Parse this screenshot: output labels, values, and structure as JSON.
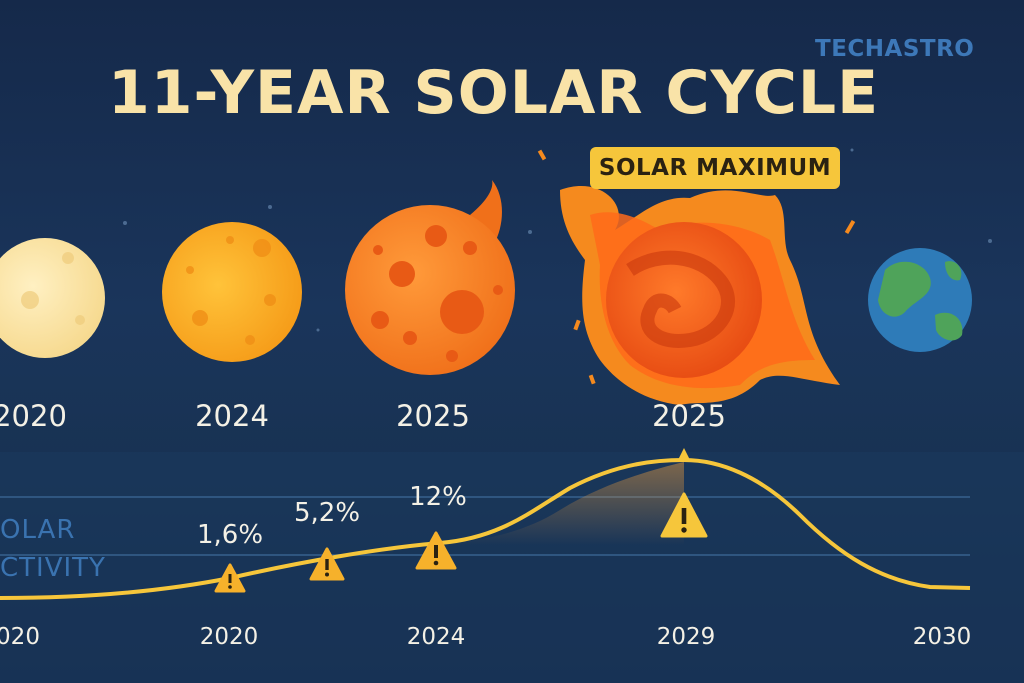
{
  "header": {
    "title": "11-YEAR SOLAR CYCLE",
    "brand": "TECHASTRO"
  },
  "callout": {
    "label": "SOLAR MAXIMUM"
  },
  "stages": [
    {
      "year": "2020",
      "icon": "pale-sun-icon"
    },
    {
      "year": "2024",
      "icon": "orange-sun-icon"
    },
    {
      "year": "2025",
      "icon": "spotted-sun-icon"
    },
    {
      "year": "2025",
      "icon": "flaring-sun-icon"
    },
    {
      "icon": "earth-icon"
    }
  ],
  "activity_chart": {
    "label_lines": [
      "OLAR",
      "CTIVITY"
    ],
    "markers": [
      {
        "value": "1,6%"
      },
      {
        "value": "5,2%"
      },
      {
        "value": "12%"
      },
      {
        "value": ""
      }
    ],
    "axis_years": [
      "020",
      "2020",
      "2024",
      "2029",
      "2030"
    ]
  },
  "colors": {
    "title": "#f9e3a8",
    "curve": "#f6c63b",
    "badge": "#f6c63b",
    "brand": "#3d78b8"
  }
}
